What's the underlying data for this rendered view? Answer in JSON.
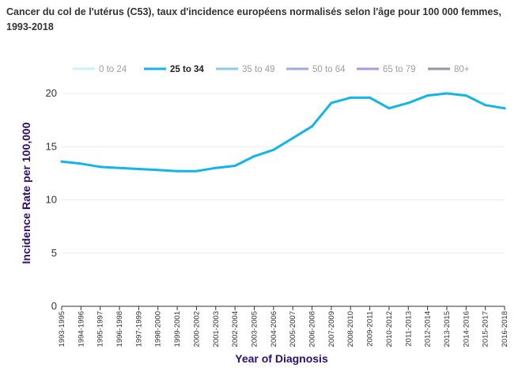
{
  "chart_data": {
    "type": "line",
    "title": "Cancer du col de l'utérus (C53), taux d'incidence européens normalisés selon l'âge pour 100 000 femmes, 1993-2018",
    "xlabel": "Year of Diagnosis",
    "ylabel": "Incidence Rate per 100,000",
    "ylim": [
      0,
      20
    ],
    "yticks": [
      "0",
      "5",
      "10",
      "15",
      "20"
    ],
    "categories": [
      "1993-1995",
      "1994-1996",
      "1995-1997",
      "1996-1998",
      "1997-1999",
      "1998-2000",
      "1999-2001",
      "2000-2002",
      "2001-2003",
      "2002-2004",
      "2003-2005",
      "2004-2006",
      "2005-2007",
      "2006-2008",
      "2007-2009",
      "2008-2010",
      "2009-2011",
      "2010-2012",
      "2011-2013",
      "2012-2014",
      "2013-2015",
      "2014-2016",
      "2015-2017",
      "2016-2018"
    ],
    "legend_position": "top",
    "legend": [
      {
        "name": "0 to 24",
        "color": "#c9f0fb",
        "active": false
      },
      {
        "name": "25 to 34",
        "color": "#12b5ea",
        "active": true
      },
      {
        "name": "35 to 49",
        "color": "#8fc7ef",
        "active": false
      },
      {
        "name": "50 to 64",
        "color": "#a3a8df",
        "active": false
      },
      {
        "name": "65 to 79",
        "color": "#b197de",
        "active": false
      },
      {
        "name": "80+",
        "color": "#9c90ad",
        "active": false
      }
    ],
    "series": [
      {
        "name": "25 to 34",
        "color": "#12b5ea",
        "values": [
          13.6,
          13.4,
          13.1,
          13.0,
          12.9,
          12.8,
          12.7,
          12.7,
          13.0,
          13.2,
          14.1,
          14.7,
          15.8,
          16.9,
          19.1,
          19.6,
          19.6,
          18.6,
          19.1,
          19.8,
          20.0,
          19.8,
          18.9,
          18.6
        ]
      }
    ],
    "grid": true
  }
}
